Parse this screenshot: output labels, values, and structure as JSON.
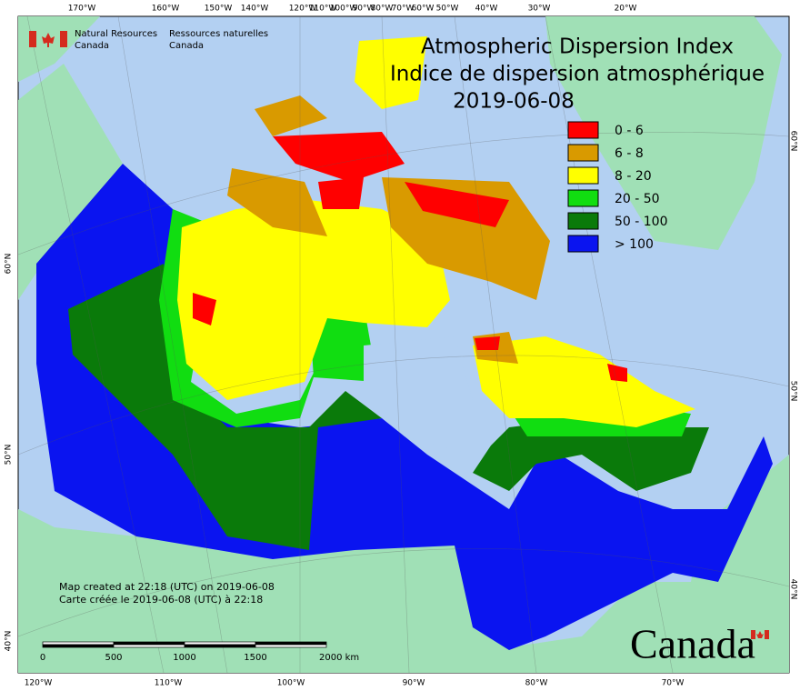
{
  "header": {
    "agency_en": [
      "Natural Resources",
      "Canada"
    ],
    "agency_fr": [
      "Ressources naturelles",
      "Canada"
    ]
  },
  "title": {
    "en": "Atmospheric Dispersion Index",
    "fr": "Indice de dispersion atmosphérique",
    "date": "2019-06-08"
  },
  "legend": [
    {
      "label": "0 - 6",
      "color": "#ff0000"
    },
    {
      "label": "6 - 8",
      "color": "#d99a00"
    },
    {
      "label": "8 - 20",
      "color": "#ffff00"
    },
    {
      "label": "20 - 50",
      "color": "#11dd11"
    },
    {
      "label": "50 - 100",
      "color": "#0a7a0a"
    },
    {
      "label": "> 100",
      "color": "#0a14f0"
    }
  ],
  "graticule": {
    "top": [
      "170°W",
      "160°W",
      "150°W",
      "140°W",
      "120°W",
      "110°W",
      "100°W",
      "90°W",
      "80°W",
      "70°W",
      "60°W",
      "50°W",
      "40°W",
      "30°W",
      "20°W"
    ],
    "bottom": [
      "120°W",
      "110°W",
      "100°W",
      "90°W",
      "80°W",
      "70°W"
    ],
    "left": [
      "60°N",
      "50°N",
      "40°N"
    ],
    "right": [
      "60°N",
      "50°N",
      "40°N"
    ]
  },
  "note": [
    "Map created at 22:18 (UTC) on 2019-06-08",
    "Carte créée le 2019-06-08 (UTC) à 22:18"
  ],
  "scale_bar": [
    "0",
    "500",
    "1000",
    "1500",
    "2000 km"
  ],
  "wordmark": "Canada"
}
